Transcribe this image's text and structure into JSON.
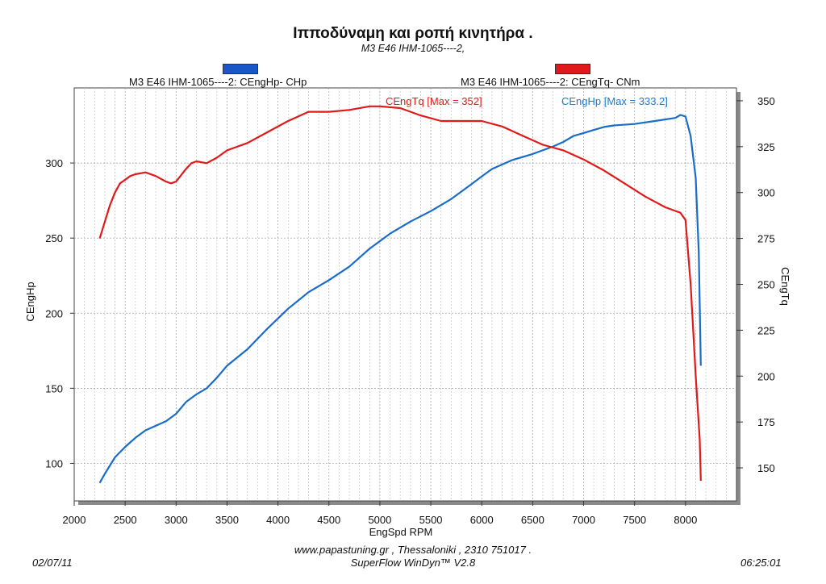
{
  "header": {
    "title": "Ιπποδύναμη και ροπή κινητήρα .",
    "subtitle": "M3 E46  IHM-1065----2,"
  },
  "legend": {
    "hp_label": "M3 E46  IHM-1065----2: CEngHp-  CHp",
    "tq_label": "M3 E46  IHM-1065----2: CEngTq-  CNm",
    "hp_color": "#1a56c8",
    "tq_color": "#e01a1a"
  },
  "footer": {
    "website_line": "www.papastuning.gr   ,    Thessaloniki    ,    2310 751017 .",
    "software": "SuperFlow WinDyn™ V2.8",
    "date": "02/07/11",
    "time": "06:25:01"
  },
  "chart_data": {
    "type": "line",
    "xlabel": "EngSpd  RPM",
    "ylabel_left": "CEngHp",
    "ylabel_right": "CEngTq",
    "xlim": [
      2000,
      8500
    ],
    "ylim_left": [
      75,
      350
    ],
    "ylim_right": [
      132,
      357
    ],
    "x_ticks": [
      2000,
      2500,
      3000,
      3500,
      4000,
      4500,
      5000,
      5500,
      6000,
      6500,
      7000,
      7500,
      8000
    ],
    "y_left_ticks": [
      100,
      150,
      200,
      250,
      300
    ],
    "y_right_ticks": [
      150,
      175,
      200,
      225,
      250,
      275,
      300,
      325,
      350
    ],
    "grid": true,
    "annotations": [
      {
        "text": "CEngTq [Max = 352]",
        "series": "CEngTq",
        "color": "#e01a1a"
      },
      {
        "text": "CEngHp [Max = 333.2]",
        "series": "CEngHp",
        "color": "#1a7ad6"
      }
    ],
    "series": [
      {
        "name": "CEngHp",
        "axis": "left",
        "color": "#1a6cc9",
        "x": [
          2250,
          2300,
          2400,
          2500,
          2600,
          2700,
          2800,
          2900,
          3000,
          3100,
          3200,
          3300,
          3400,
          3500,
          3700,
          3900,
          4100,
          4300,
          4500,
          4700,
          4900,
          5100,
          5300,
          5500,
          5700,
          5900,
          6000,
          6100,
          6300,
          6500,
          6700,
          6800,
          6900,
          7000,
          7100,
          7200,
          7300,
          7500,
          7700,
          7900,
          7950,
          8000,
          8050,
          8100,
          8130,
          8150
        ],
        "y": [
          87,
          93,
          104,
          111,
          117,
          122,
          125,
          128,
          133,
          141,
          146,
          150,
          157,
          165,
          176,
          190,
          203,
          214,
          222,
          231,
          243,
          253,
          261,
          268,
          276,
          286,
          291,
          296,
          302,
          306,
          311,
          314,
          318,
          320,
          322,
          324,
          325,
          326,
          328,
          330,
          332,
          331,
          318,
          290,
          240,
          165
        ]
      },
      {
        "name": "CEngTq",
        "axis": "right",
        "color": "#e01a1a",
        "x": [
          2250,
          2300,
          2350,
          2400,
          2450,
          2500,
          2550,
          2600,
          2700,
          2800,
          2900,
          2950,
          3000,
          3100,
          3150,
          3200,
          3300,
          3400,
          3500,
          3700,
          3900,
          4100,
          4300,
          4500,
          4700,
          4900,
          5000,
          5200,
          5400,
          5600,
          5800,
          6000,
          6200,
          6400,
          6600,
          6800,
          7000,
          7200,
          7400,
          7600,
          7800,
          7900,
          7950,
          8000,
          8050,
          8100,
          8140,
          8150
        ],
        "y": [
          275,
          284,
          293,
          300,
          305,
          307,
          309,
          310,
          311,
          309,
          306,
          305,
          306,
          313,
          316,
          317,
          316,
          319,
          323,
          327,
          333,
          339,
          344,
          344,
          345,
          347,
          347,
          346,
          342,
          339,
          339,
          339,
          336,
          331,
          326,
          323,
          318,
          312,
          305,
          298,
          292,
          290,
          289,
          285,
          250,
          200,
          165,
          143
        ]
      }
    ]
  }
}
